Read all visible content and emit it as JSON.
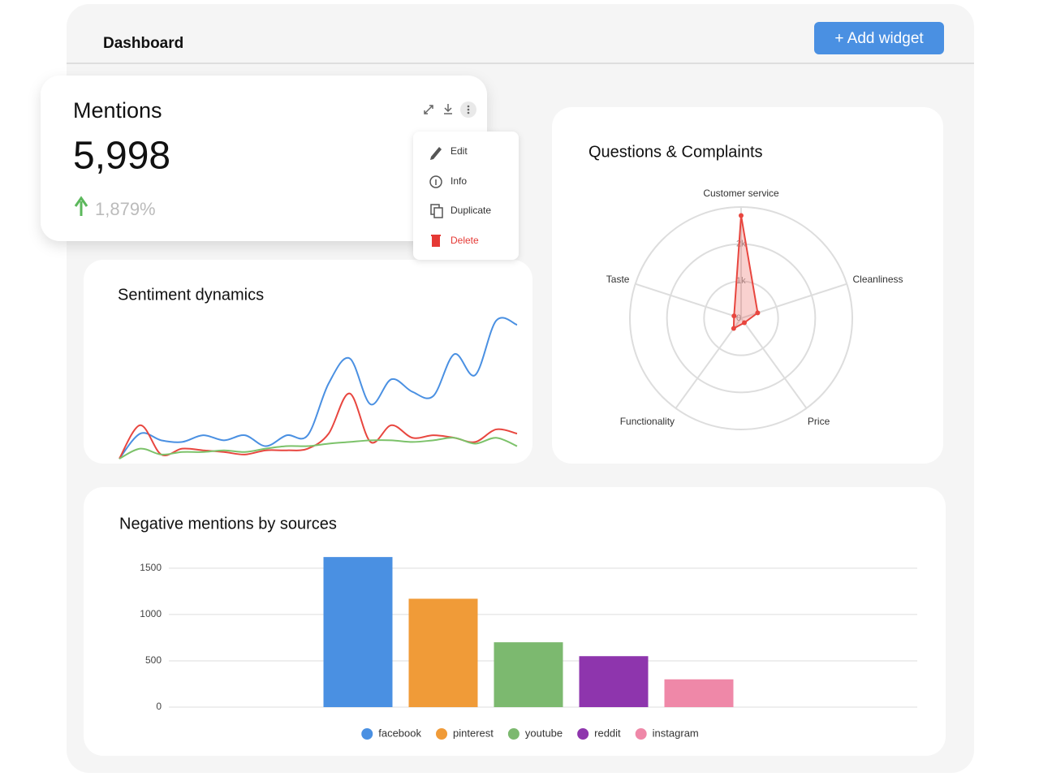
{
  "header": {
    "title": "Dashboard",
    "button": "+ Add widget"
  },
  "mentions": {
    "title": "Mentions",
    "value": "5,998",
    "change": "1,879%",
    "menu": [
      "Edit",
      "Info",
      "Duplicate",
      "Delete"
    ]
  },
  "sentiment": {
    "type": "line",
    "title": "Sentiment dynamics",
    "series": [
      {
        "color": "#4a90e2",
        "values": [
          0,
          30,
          22,
          20,
          28,
          22,
          28,
          15,
          28,
          28,
          90,
          120,
          65,
          95,
          80,
          75,
          125,
          100,
          165,
          160
        ]
      },
      {
        "color": "#e8463f",
        "values": [
          0,
          40,
          5,
          12,
          10,
          8,
          5,
          10,
          10,
          12,
          30,
          78,
          20,
          40,
          25,
          28,
          25,
          20,
          35,
          30
        ]
      },
      {
        "color": "#7cc26a",
        "values": [
          0,
          12,
          5,
          8,
          8,
          10,
          8,
          12,
          15,
          15,
          18,
          20,
          22,
          22,
          20,
          22,
          25,
          18,
          25,
          15
        ]
      }
    ]
  },
  "complaints": {
    "type": "radar",
    "title": "Questions & Complaints",
    "categories": [
      "Customer service",
      "Cleanliness",
      "Price",
      "Functionality",
      "Taste"
    ],
    "values": [
      2770,
      470,
      150,
      340,
      200
    ],
    "color": "#e8463f",
    "rlim": [
      0,
      3000
    ],
    "rticks": [
      0,
      {
        "value": 1000,
        "label": "1k"
      },
      {
        "value": 2000,
        "label": "2k"
      }
    ]
  },
  "sources": {
    "type": "bar",
    "title": "Negative mentions by sources",
    "categories": [
      null
    ],
    "series": [
      {
        "name": "facebook",
        "color": "#4a90e2",
        "values": [
          1620
        ]
      },
      {
        "name": "pinterest",
        "color": "#f09b38",
        "values": [
          1170
        ]
      },
      {
        "name": "youtube",
        "color": "#7cb96f",
        "values": [
          700
        ]
      },
      {
        "name": "reddit",
        "color": "#8e35ad",
        "values": [
          550
        ]
      },
      {
        "name": "instagram",
        "color": "#ef88a8",
        "values": [
          300
        ]
      }
    ],
    "ylim": [
      0,
      1700
    ],
    "yticks": [
      0,
      500,
      1000,
      1500
    ],
    "grid": true
  }
}
